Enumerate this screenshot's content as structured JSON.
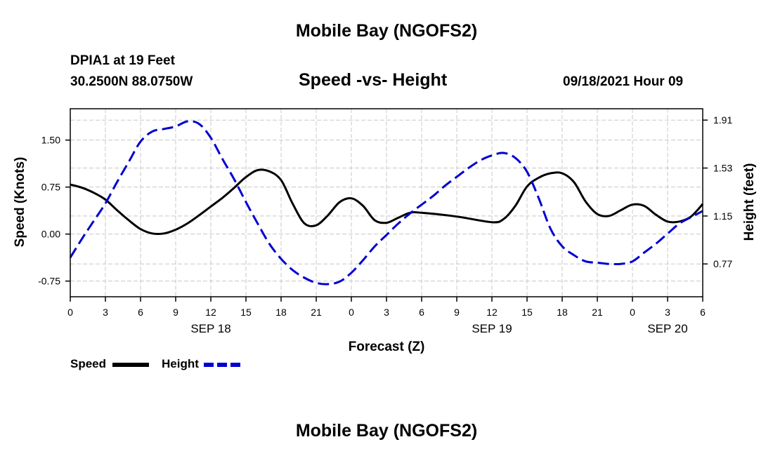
{
  "header": {
    "title": "Mobile Bay (NGOFS2)",
    "station": "DPIA1 at 19 Feet",
    "coordinates": "30.2500N  88.0750W",
    "subtitle": "Speed -vs- Height",
    "datetime": "09/18/2021 Hour 09"
  },
  "footer": {
    "title": "Mobile Bay (NGOFS2)"
  },
  "legend": {
    "speed_label": "Speed",
    "height_label": "Height",
    "speed_color": "#000000",
    "height_color": "#0000d0"
  },
  "chart_data": {
    "type": "line",
    "title": "Speed -vs- Height",
    "xlabel": "Forecast (Z)",
    "ylabel": "Speed (Knots)",
    "y2label": "Height (feet)",
    "xlim": [
      0,
      54
    ],
    "ylim": [
      -1.0,
      2.0
    ],
    "y2lim": [
      0.51,
      2.0
    ],
    "x_ticks": [
      0,
      3,
      6,
      9,
      12,
      15,
      18,
      21,
      24,
      27,
      30,
      33,
      36,
      39,
      42,
      45,
      48,
      51,
      54
    ],
    "x_tick_labels": [
      "0",
      "3",
      "6",
      "9",
      "12",
      "15",
      "18",
      "21",
      "0",
      "3",
      "6",
      "9",
      "12",
      "15",
      "18",
      "21",
      "0",
      "3",
      "6"
    ],
    "date_labels": [
      {
        "x": 12,
        "label": "SEP 18"
      },
      {
        "x": 36,
        "label": "SEP 19"
      },
      {
        "x": 51,
        "label": "SEP 20"
      }
    ],
    "y_ticks": [
      -0.75,
      0.0,
      0.75,
      1.5
    ],
    "y_tick_labels": [
      "-0.75",
      "0.00",
      "0.75",
      "1.50"
    ],
    "y2_ticks": [
      0.77,
      1.15,
      1.53,
      1.91
    ],
    "y2_tick_labels": [
      "0.77",
      "1.15",
      "1.53",
      "1.91"
    ],
    "grid": true,
    "series": [
      {
        "name": "Speed",
        "axis": "left",
        "color": "#000000",
        "x": [
          0,
          1,
          2,
          3,
          4,
          5,
          6,
          7,
          8,
          9,
          10,
          11,
          12,
          13,
          14,
          15,
          16,
          17,
          18,
          19,
          20,
          21,
          22,
          23,
          24,
          25,
          26,
          27,
          28,
          29,
          30,
          33,
          36,
          37,
          38,
          39,
          40,
          41,
          42,
          43,
          44,
          45,
          46,
          47,
          48,
          49,
          50,
          51,
          52,
          53,
          54
        ],
        "values": [
          0.79,
          0.74,
          0.66,
          0.55,
          0.38,
          0.22,
          0.08,
          0.01,
          0.01,
          0.07,
          0.17,
          0.3,
          0.44,
          0.58,
          0.74,
          0.91,
          1.02,
          1.0,
          0.86,
          0.48,
          0.17,
          0.14,
          0.3,
          0.51,
          0.57,
          0.45,
          0.22,
          0.18,
          0.26,
          0.34,
          0.34,
          0.28,
          0.19,
          0.24,
          0.45,
          0.76,
          0.9,
          0.97,
          0.97,
          0.83,
          0.52,
          0.32,
          0.29,
          0.38,
          0.47,
          0.45,
          0.31,
          0.2,
          0.2,
          0.28,
          0.48
        ]
      },
      {
        "name": "Height",
        "axis": "right",
        "color": "#0000d0",
        "x": [
          0,
          1,
          2,
          3,
          4,
          5,
          6,
          7,
          8,
          9,
          10,
          11,
          12,
          13,
          14,
          15,
          16,
          17,
          18,
          19,
          20,
          21,
          22,
          23,
          24,
          25,
          26,
          27,
          28,
          29,
          30,
          31,
          32,
          33,
          34,
          35,
          36,
          37,
          38,
          39,
          40,
          41,
          42,
          43,
          44,
          45,
          46,
          47,
          48,
          49,
          50,
          51,
          52,
          53,
          54
        ],
        "values": [
          0.82,
          0.97,
          1.11,
          1.25,
          1.42,
          1.58,
          1.74,
          1.82,
          1.84,
          1.86,
          1.9,
          1.88,
          1.77,
          1.6,
          1.44,
          1.26,
          1.09,
          0.93,
          0.81,
          0.72,
          0.66,
          0.62,
          0.61,
          0.63,
          0.7,
          0.8,
          0.91,
          1.0,
          1.09,
          1.17,
          1.24,
          1.31,
          1.39,
          1.46,
          1.53,
          1.59,
          1.63,
          1.65,
          1.61,
          1.5,
          1.29,
          1.05,
          0.91,
          0.84,
          0.79,
          0.78,
          0.77,
          0.77,
          0.79,
          0.86,
          0.93,
          1.01,
          1.09,
          1.14,
          1.19
        ]
      }
    ]
  }
}
